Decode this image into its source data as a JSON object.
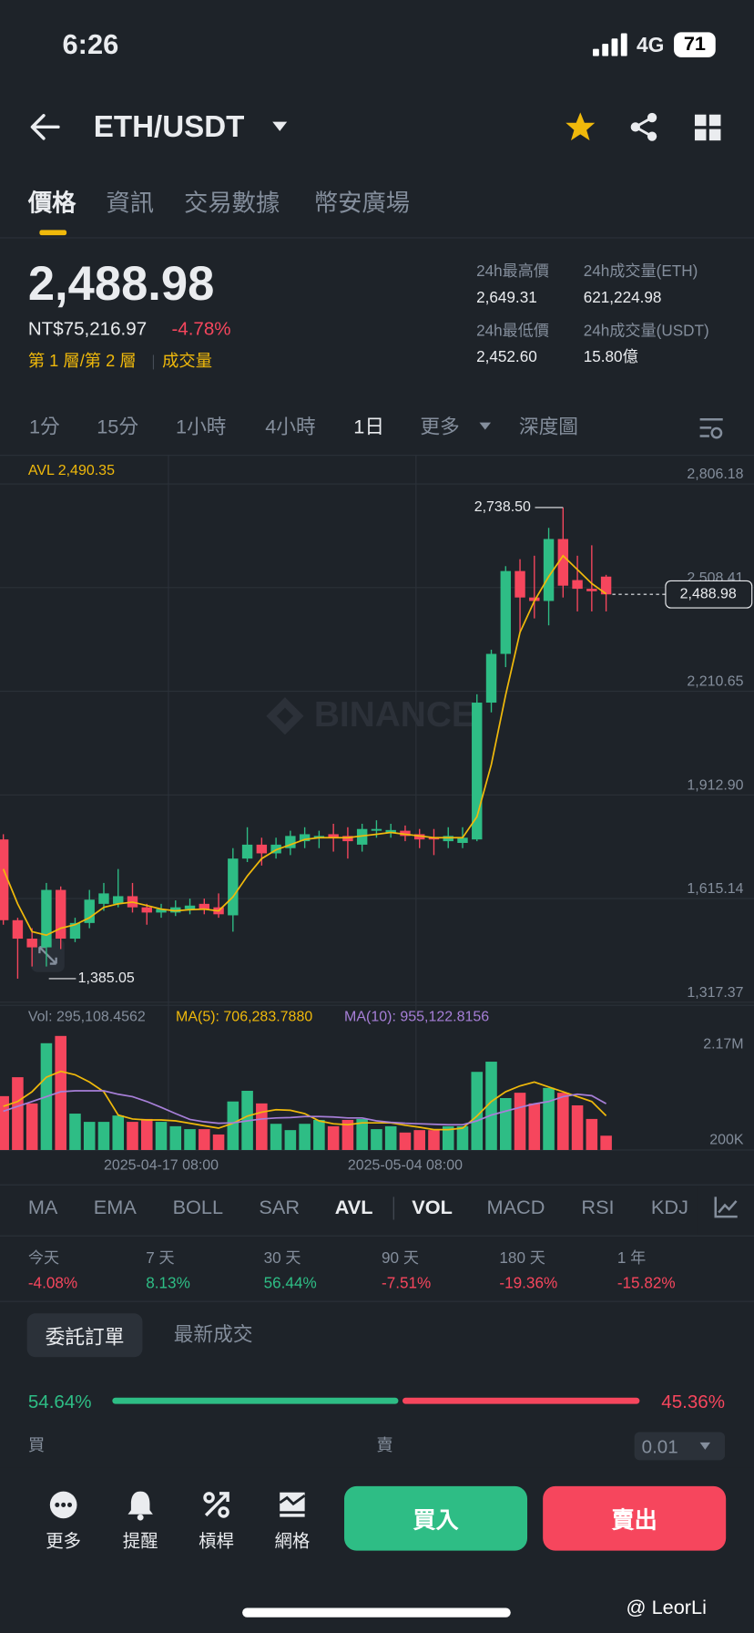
{
  "status_bar": {
    "time": "6:26",
    "network": "4G",
    "battery": "71"
  },
  "header": {
    "pair": "ETH/USDT"
  },
  "tabs": [
    "價格",
    "資訊",
    "交易數據",
    "幣安廣場"
  ],
  "price": {
    "last": "2,488.98",
    "fiat": "NT$75,216.97",
    "change": "-4.78%",
    "layers": "第 1 層/第 2 層",
    "volume_link": "成交量"
  },
  "stats": [
    {
      "label": "24h最高價",
      "value": "2,649.31"
    },
    {
      "label": "24h成交量(ETH)",
      "value": "621,224.98"
    },
    {
      "label": "24h最低價",
      "value": "2,452.60"
    },
    {
      "label": "24h成交量(USDT)",
      "value": "15.80億"
    }
  ],
  "intervals": [
    "1分",
    "15分",
    "1小時",
    "4小時",
    "1日",
    "更多",
    "深度圖"
  ],
  "chart_data": {
    "type": "candlestick",
    "watermark": "BINANCE",
    "categories": [
      null,
      null,
      null,
      null,
      null,
      null,
      null,
      null,
      null,
      null,
      null,
      "2025-04-17 08:00",
      null,
      null,
      null,
      null,
      null,
      null,
      null,
      null,
      null,
      null,
      null,
      null,
      null,
      null,
      null,
      null,
      "2025-05-04 08:00",
      null,
      null,
      null,
      null,
      null,
      null,
      null,
      null,
      null,
      null,
      null,
      null,
      null,
      null
    ],
    "open": [
      1785,
      1553,
      1500,
      1475,
      1640,
      1500,
      1545,
      1600,
      1600,
      1622,
      1590,
      1575,
      1575,
      1585,
      1600,
      1590,
      1567,
      1730,
      1770,
      1745,
      1760,
      1780,
      1790,
      1800,
      1795,
      1770,
      1810,
      1805,
      1810,
      1800,
      1790,
      1780,
      1775,
      1785,
      2178,
      2318,
      2556,
      2480,
      2470,
      2648,
      2530,
      2505,
      2540
    ],
    "high": [
      1800,
      1560,
      1530,
      1660,
      1650,
      1560,
      1640,
      1660,
      1700,
      1660,
      1600,
      1600,
      1610,
      1615,
      1615,
      1630,
      1760,
      1820,
      1790,
      1790,
      1810,
      1820,
      1810,
      1830,
      1820,
      1830,
      1840,
      1830,
      1825,
      1815,
      1815,
      1820,
      1820,
      2202,
      2330,
      2570,
      2590,
      2600,
      2680,
      2738.5,
      2600,
      2630,
      2545
    ],
    "low": [
      1540,
      1385.05,
      1420,
      1420,
      1470,
      1490,
      1530,
      1580,
      1590,
      1575,
      1540,
      1560,
      1565,
      1570,
      1570,
      1560,
      1520,
      1720,
      1710,
      1730,
      1740,
      1760,
      1760,
      1750,
      1730,
      1750,
      1790,
      1790,
      1780,
      1760,
      1740,
      1760,
      1760,
      1780,
      2150,
      2280,
      2380,
      2420,
      2400,
      2480,
      2440,
      2440,
      2440
    ],
    "close": [
      1553,
      1500,
      1475,
      1640,
      1500,
      1545,
      1612,
      1630,
      1622,
      1590,
      1575,
      1585,
      1590,
      1595,
      1585,
      1570,
      1730,
      1770,
      1745,
      1770,
      1795,
      1800,
      1795,
      1790,
      1780,
      1815,
      1815,
      1812,
      1795,
      1785,
      1785,
      1795,
      1790,
      2178,
      2318,
      2556,
      2480,
      2470,
      2648,
      2514,
      2505,
      2498,
      2488.98
    ],
    "high_value_labels": [
      null,
      null,
      null,
      null,
      null,
      null,
      null,
      null,
      null,
      null,
      null,
      null,
      null,
      null,
      null,
      null,
      null,
      null,
      null,
      null,
      null,
      null,
      null,
      null,
      null,
      null,
      null,
      null,
      null,
      null,
      null,
      null,
      null,
      null,
      null,
      null,
      null,
      null,
      null,
      "2,738.50",
      null,
      null,
      null
    ],
    "low_value_labels": [
      null,
      "1,385.05",
      null,
      null,
      null,
      null,
      null,
      null,
      null,
      null,
      null,
      null,
      null,
      null,
      null,
      null,
      null,
      null,
      null,
      null,
      null,
      null,
      null,
      null,
      null,
      null,
      null,
      null,
      null,
      null,
      null,
      null,
      null,
      null,
      null,
      null,
      null,
      null,
      null,
      null,
      null,
      null,
      null
    ],
    "close_value_labels": [
      null,
      null,
      null,
      null,
      null,
      null,
      null,
      null,
      null,
      null,
      null,
      null,
      null,
      null,
      null,
      null,
      null,
      null,
      null,
      null,
      null,
      null,
      null,
      null,
      null,
      null,
      null,
      null,
      null,
      null,
      null,
      null,
      null,
      null,
      null,
      null,
      null,
      null,
      null,
      null,
      null,
      null,
      "2,488.98"
    ],
    "up_color": "#2ebd85",
    "down_color": "#f6465d",
    "ylim": [
      1317.37,
      2806.18
    ],
    "yticks": [
      {
        "value": 2806.18,
        "label": "2,806.18"
      },
      {
        "value": 2508.41,
        "label": "2,508.41"
      },
      {
        "value": 2210.65,
        "label": "2,210.65"
      },
      {
        "value": 1912.9,
        "label": "1,912.90"
      },
      {
        "value": 1615.14,
        "label": "1,615.14"
      },
      {
        "value": 1317.37,
        "label": "1,317.37"
      }
    ],
    "grid": true,
    "series": [
      {
        "name": "AVL",
        "color": "#f0b90b",
        "values": [
          1700,
          1600,
          1520,
          1510,
          1530,
          1540,
          1560,
          1590,
          1600,
          1605,
          1595,
          1585,
          1580,
          1583,
          1585,
          1580,
          1620,
          1680,
          1730,
          1755,
          1770,
          1785,
          1790,
          1790,
          1790,
          1795,
          1800,
          1805,
          1800,
          1795,
          1790,
          1790,
          1790,
          1850,
          2000,
          2200,
          2380,
          2470,
          2540,
          2600,
          2560,
          2520,
          2490.35
        ],
        "value_labels": [
          null,
          null,
          null,
          null,
          null,
          null,
          null,
          null,
          null,
          null,
          null,
          null,
          null,
          null,
          null,
          null,
          null,
          null,
          null,
          null,
          null,
          null,
          null,
          null,
          null,
          null,
          null,
          null,
          null,
          null,
          null,
          null,
          null,
          null,
          null,
          null,
          null,
          null,
          null,
          null,
          null,
          null,
          "2,490.35"
        ]
      }
    ],
    "volume": {
      "name": "Vol:",
      "values": [
        1110000,
        1500000,
        960000,
        2200000,
        2350000,
        750000,
        580000,
        580000,
        710000,
        580000,
        640000,
        580000,
        490000,
        430000,
        430000,
        320000,
        1000000,
        1220000,
        960000,
        540000,
        410000,
        540000,
        620000,
        490000,
        620000,
        640000,
        430000,
        490000,
        360000,
        410000,
        410000,
        490000,
        490000,
        1610000,
        1820000,
        1070000,
        1180000,
        960000,
        1280000,
        1180000,
        920000,
        640000,
        295108.4562
      ],
      "value_labels": [
        null,
        null,
        null,
        null,
        null,
        null,
        null,
        null,
        null,
        null,
        null,
        null,
        null,
        null,
        null,
        null,
        null,
        null,
        null,
        null,
        null,
        null,
        null,
        null,
        null,
        null,
        null,
        null,
        null,
        null,
        null,
        null,
        null,
        null,
        null,
        null,
        null,
        null,
        null,
        null,
        null,
        null,
        "295,108.4562"
      ],
      "ylim": [
        0,
        2380000
      ],
      "yticks": [
        {
          "value": 2170000,
          "label": "2.17M"
        },
        {
          "value": 200000,
          "label": "200K"
        }
      ],
      "series": [
        {
          "name": "MA(5):",
          "color": "#f0b90b",
          "values": [
            900000,
            1000000,
            1200000,
            1500000,
            1620000,
            1550000,
            1400000,
            1200000,
            720000,
            640000,
            620000,
            620000,
            600000,
            550000,
            500000,
            450000,
            550000,
            700000,
            780000,
            830000,
            820000,
            750000,
            600000,
            540000,
            520000,
            560000,
            560000,
            560000,
            510000,
            470000,
            420000,
            420000,
            450000,
            700000,
            1000000,
            1200000,
            1320000,
            1400000,
            1300000,
            1200000,
            1100000,
            1000000,
            706283.788
          ],
          "value_labels": [
            null,
            null,
            null,
            null,
            null,
            null,
            null,
            null,
            null,
            null,
            null,
            null,
            null,
            null,
            null,
            null,
            null,
            null,
            null,
            null,
            null,
            null,
            null,
            null,
            null,
            null,
            null,
            null,
            null,
            null,
            null,
            null,
            null,
            null,
            null,
            null,
            null,
            null,
            null,
            null,
            null,
            null,
            "706,283.7880"
          ]
        },
        {
          "name": "MA(10):",
          "color": "#a77fd8",
          "values": [
            800000,
            900000,
            1000000,
            1100000,
            1200000,
            1220000,
            1220000,
            1220000,
            1150000,
            1100000,
            1000000,
            880000,
            750000,
            630000,
            580000,
            550000,
            560000,
            600000,
            640000,
            660000,
            670000,
            690000,
            690000,
            680000,
            660000,
            660000,
            600000,
            570000,
            550000,
            540000,
            530000,
            520000,
            520000,
            600000,
            720000,
            800000,
            880000,
            950000,
            1000000,
            1100000,
            1150000,
            1120000,
            955122.8156
          ],
          "value_labels": [
            null,
            null,
            null,
            null,
            null,
            null,
            null,
            null,
            null,
            null,
            null,
            null,
            null,
            null,
            null,
            null,
            null,
            null,
            null,
            null,
            null,
            null,
            null,
            null,
            null,
            null,
            null,
            null,
            null,
            null,
            null,
            null,
            null,
            null,
            null,
            null,
            null,
            null,
            null,
            null,
            null,
            null,
            "955,122.8156"
          ]
        }
      ]
    }
  },
  "indicators": [
    "MA",
    "EMA",
    "BOLL",
    "SAR",
    "AVL",
    "VOL",
    "MACD",
    "RSI",
    "KDJ"
  ],
  "performance": [
    {
      "period": "今天",
      "change": {
        "value": -4.08,
        "label": "-4.08%"
      }
    },
    {
      "period": "7 天",
      "change": {
        "value": 8.13,
        "label": "8.13%"
      }
    },
    {
      "period": "30 天",
      "change": {
        "value": 56.44,
        "label": "56.44%"
      }
    },
    {
      "period": "90 天",
      "change": {
        "value": -7.51,
        "label": "-7.51%"
      }
    },
    {
      "period": "180 天",
      "change": {
        "value": -19.36,
        "label": "-19.36%"
      }
    },
    {
      "period": "1 年",
      "change": {
        "value": -15.82,
        "label": "-15.82%"
      }
    }
  ],
  "orders": {
    "tabs": [
      "委託訂單",
      "最新成交"
    ],
    "buy": {
      "value": 54.64,
      "label": "54.64%"
    },
    "sell": {
      "value": 45.36,
      "label": "45.36%"
    },
    "buy_label": "買",
    "sell_label": "賣",
    "step": "0.01"
  },
  "bottom_nav": [
    "更多",
    "提醒",
    "槓桿",
    "網格"
  ],
  "actions": {
    "buy": "買入",
    "sell": "賣出"
  },
  "watermark": "@ LeorLi"
}
